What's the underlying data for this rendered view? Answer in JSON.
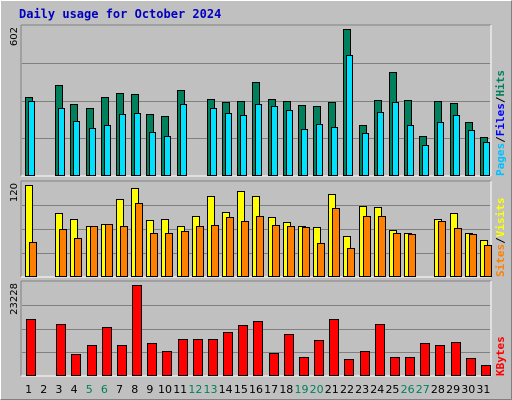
{
  "chart_data": {
    "type": "bar",
    "title": "Daily usage for October 2024",
    "categories": [
      "1",
      "2",
      "3",
      "4",
      "5",
      "6",
      "7",
      "8",
      "9",
      "10",
      "11",
      "12",
      "13",
      "14",
      "15",
      "16",
      "17",
      "18",
      "19",
      "20",
      "21",
      "22",
      "23",
      "24",
      "25",
      "26",
      "27",
      "28",
      "29",
      "30",
      "31"
    ],
    "weekend_days": [
      5,
      6,
      12,
      13,
      19,
      20,
      26,
      27
    ],
    "colors": {
      "hits": "#00805c",
      "files": "#00e0ff",
      "pages": "#00c0ff",
      "visits": "#ffff00",
      "sites": "#ff8000",
      "kbytes": "#ff0000",
      "weekday_label": "#000000",
      "weekend_label": "#00805c",
      "title": "#0000c0"
    },
    "panels": [
      {
        "id": "requests",
        "max_label": "602",
        "ymax": 602,
        "legend": [
          {
            "text": "Pages",
            "color": "#00c0ff"
          },
          {
            "text": "/",
            "color": "#000000"
          },
          {
            "text": "Files",
            "color": "#0000ff"
          },
          {
            "text": "/",
            "color": "#000000"
          },
          {
            "text": "Hits",
            "color": "#00805c"
          }
        ],
        "series": [
          {
            "name": "Hits",
            "color": "#00805c",
            "values": [
              324,
              0,
              373,
              295,
              278,
              324,
              340,
              336,
              255,
              246,
              353,
              0,
              316,
              304,
              308,
              386,
              316,
              308,
              291,
              287,
              304,
              602,
              210,
              311,
              426,
              312,
              162,
              308,
              298,
              220,
              160
            ]
          },
          {
            "name": "Files",
            "color": "#00e0ff",
            "values": [
              307,
              0,
              277,
              225,
              198,
              207,
              253,
              257,
              180,
              162,
              295,
              0,
              278,
              257,
              250,
              295,
              287,
              269,
              193,
              214,
              202,
              497,
              178,
              262,
              303,
              210,
              125,
              221,
              250,
              190,
              140
            ]
          },
          {
            "name": "Pages",
            "color": "#00c0ff",
            "values": [
              0,
              0,
              0,
              0,
              0,
              0,
              0,
              0,
              0,
              0,
              0,
              0,
              0,
              0,
              0,
              0,
              0,
              0,
              0,
              0,
              0,
              0,
              0,
              0,
              0,
              0,
              0,
              0,
              0,
              0,
              0
            ]
          }
        ]
      },
      {
        "id": "visitors",
        "max_label": "120",
        "ymax": 120,
        "legend": [
          {
            "text": "Sites",
            "color": "#ff8000"
          },
          {
            "text": "/",
            "color": "#000000"
          },
          {
            "text": "Visits",
            "color": "#ffff00"
          }
        ],
        "series": [
          {
            "name": "Visits",
            "color": "#ffff00",
            "values": [
              120,
              0,
              84,
              75,
              67,
              69,
              102,
              116,
              74,
              75,
              66,
              79,
              105,
              85,
              112,
              105,
              78,
              72,
              66,
              65,
              108,
              53,
              92,
              91,
              61,
              58,
              0,
              75,
              83,
              58,
              48
            ]
          },
          {
            "name": "Sites",
            "color": "#ff8000",
            "values": [
              46,
              0,
              62,
              51,
              66,
              69,
              67,
              97,
              57,
              58,
              60,
              66,
              68,
              78,
              73,
              80,
              68,
              66,
              65,
              44,
              90,
              38,
              80,
              79,
              57,
              56,
              0,
              73,
              64,
              56,
              42
            ]
          }
        ]
      },
      {
        "id": "kbytes",
        "max_label": "23228",
        "ymax": 23228,
        "legend": [
          {
            "text": "KBytes",
            "color": "#ff0000"
          }
        ],
        "series": [
          {
            "name": "KBytes",
            "color": "#ff0000",
            "values": [
              14500,
              0,
              13400,
              5700,
              7800,
              12600,
              8000,
              23228,
              8300,
              6500,
              9500,
              9500,
              9400,
              11300,
              13100,
              14100,
              5900,
              10600,
              4900,
              9300,
              14600,
              4400,
              6500,
              13300,
              4800,
              4800,
              8300,
              7800,
              8700,
              4600,
              2900
            ]
          }
        ]
      }
    ]
  }
}
